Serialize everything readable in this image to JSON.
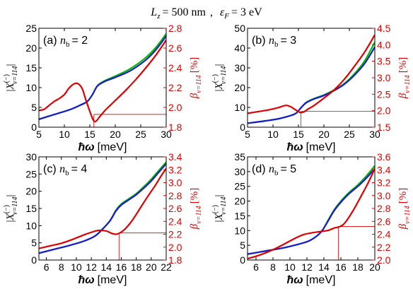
{
  "figure": {
    "title": "L_z = 500 nm ,  ε_F = 3 eV",
    "title_parts": {
      "lz_sym": "L",
      "lz_sub": "z",
      "lz_val": "= 500 nm",
      "sep": ",",
      "ef_sym": "ε",
      "ef_sub": "F",
      "ef_val": "= 3 eV"
    },
    "colors": {
      "axis": "#000000",
      "x_green": "#00bb00",
      "x_blue": "#1a1ad6",
      "beta_red": "#e00000",
      "guide": "#e00000"
    }
  },
  "chart_data": [
    {
      "type": "line",
      "panel_label": "(a)",
      "nb_label": "n_b = 2",
      "nb_sym": "n",
      "nb_sub": "b",
      "nb_val": "= 2",
      "xlabel": "ħω [meV]",
      "ylabel_left": "|X^(−)_{ν=114}|",
      "ylabel_right": "β_{ν=114} [%]",
      "xlim": [
        5,
        30
      ],
      "ylim_left": [
        0,
        25
      ],
      "ylim_right": [
        1.8,
        2.8
      ],
      "xticks": [
        5,
        10,
        15,
        20,
        25,
        30
      ],
      "yticks_left": [
        0,
        5,
        10,
        15,
        20,
        25
      ],
      "yticks_right": [
        1.8,
        2.0,
        2.2,
        2.4,
        2.6,
        2.8
      ],
      "series": [
        {
          "axis": "left",
          "color": "#00bb00",
          "x": [
            5,
            8,
            11,
            13,
            14.5,
            15.5,
            16.5,
            18,
            20,
            23,
            26,
            28,
            30
          ],
          "y": [
            2,
            3.2,
            4.4,
            5.5,
            6.5,
            8.2,
            10.5,
            11.8,
            12.9,
            14.8,
            17.6,
            20.2,
            23.6
          ]
        },
        {
          "axis": "left",
          "color": "#1a1ad6",
          "x": [
            5,
            8,
            11,
            13,
            14.5,
            15.5,
            16.5,
            18,
            20,
            23,
            26,
            28,
            30
          ],
          "y": [
            2,
            3.2,
            4.4,
            5.5,
            6.5,
            8.2,
            10.4,
            11.6,
            12.6,
            14.3,
            17.0,
            19.6,
            23.0
          ]
        },
        {
          "axis": "right",
          "color": "#e00000",
          "x": [
            5,
            6,
            7,
            8,
            9,
            10,
            11,
            12,
            12.7,
            13.5,
            14.2,
            15,
            15.7,
            16.2,
            17,
            18,
            19,
            20,
            22,
            24,
            26,
            28,
            30
          ],
          "y": [
            1.97,
            1.98,
            2.02,
            2.06,
            2.09,
            2.13,
            2.2,
            2.24,
            2.24,
            2.19,
            2.08,
            1.96,
            1.87,
            1.86,
            1.91,
            1.97,
            2.02,
            2.07,
            2.17,
            2.28,
            2.4,
            2.53,
            2.68
          ]
        }
      ],
      "guide": {
        "x": 15.8,
        "y_right": 1.93,
        "x_end": 30
      }
    },
    {
      "type": "line",
      "panel_label": "(b)",
      "nb_label": "n_b = 3",
      "nb_sym": "n",
      "nb_sub": "b",
      "nb_val": "= 3",
      "xlabel": "ħω [meV]",
      "ylabel_left": "|X^(−)_{ν=114}|",
      "ylabel_right": "β_{ν=114} [%]",
      "xlim": [
        5,
        30
      ],
      "ylim_left": [
        0,
        50
      ],
      "ylim_right": [
        1.5,
        4.5
      ],
      "xticks": [
        5,
        10,
        15,
        20,
        25,
        30
      ],
      "yticks_left": [
        0,
        10,
        20,
        30,
        40,
        50
      ],
      "yticks_right": [
        1.5,
        2.0,
        2.5,
        3.0,
        3.5,
        4.0,
        4.5
      ],
      "series": [
        {
          "axis": "left",
          "color": "#00bb00",
          "x": [
            5,
            8,
            11,
            13,
            14.5,
            15.5,
            16.5,
            18,
            20,
            22,
            24,
            26,
            28,
            30
          ],
          "y": [
            2,
            3,
            4.2,
            5.5,
            7,
            9.8,
            12.5,
            14.4,
            16.3,
            18.8,
            22,
            27,
            33.5,
            43
          ]
        },
        {
          "axis": "left",
          "color": "#1a1ad6",
          "x": [
            5,
            8,
            11,
            13,
            14.5,
            15.5,
            16.5,
            18,
            20,
            22,
            24,
            26,
            28,
            30
          ],
          "y": [
            2,
            3,
            4.2,
            5.5,
            7,
            9.8,
            12.3,
            14.2,
            16.0,
            18.5,
            21.7,
            26.3,
            32.2,
            40.5
          ]
        },
        {
          "axis": "right",
          "color": "#e00000",
          "x": [
            5,
            7,
            9,
            11,
            12.5,
            13.5,
            14.5,
            15.3,
            16,
            17,
            18,
            20,
            22,
            24,
            26,
            28,
            30
          ],
          "y": [
            1.92,
            1.97,
            2.02,
            2.09,
            2.16,
            2.12,
            2.02,
            1.95,
            1.96,
            2.06,
            2.15,
            2.38,
            2.63,
            2.95,
            3.35,
            3.78,
            4.3
          ]
        }
      ],
      "guide": {
        "x": 15.5,
        "y_right": 1.98,
        "x_end": 30
      }
    },
    {
      "type": "line",
      "panel_label": "(c)",
      "nb_label": "n_b = 4",
      "nb_sym": "n",
      "nb_sub": "b",
      "nb_val": "= 4",
      "xlabel": "ħω [meV]",
      "ylabel_left": "|X^(−)_{ν=114}|",
      "ylabel_right": "β_{ν=114} [%]",
      "xlim": [
        5,
        22
      ],
      "ylim_left": [
        0,
        30
      ],
      "ylim_right": [
        1.8,
        3.4
      ],
      "xticks": [
        6,
        8,
        10,
        12,
        14,
        16,
        18,
        20,
        22
      ],
      "yticks_left": [
        0,
        5,
        10,
        15,
        20,
        25,
        30
      ],
      "yticks_right": [
        1.8,
        2.0,
        2.2,
        2.4,
        2.6,
        2.8,
        3.0,
        3.2,
        3.4
      ],
      "series": [
        {
          "axis": "left",
          "color": "#00bb00",
          "x": [
            5,
            7,
            9,
            11,
            12.5,
            13.5,
            14.5,
            15.3,
            16,
            17,
            18,
            19,
            20,
            21,
            22
          ],
          "y": [
            2,
            3.1,
            4.2,
            5.5,
            7,
            9,
            11.5,
            14.5,
            16.3,
            17.8,
            19.3,
            21.3,
            23.5,
            26,
            28.5
          ]
        },
        {
          "axis": "left",
          "color": "#1a1ad6",
          "x": [
            5,
            7,
            9,
            11,
            12.5,
            13.5,
            14.5,
            15.3,
            16,
            17,
            18,
            19,
            20,
            21,
            22
          ],
          "y": [
            2,
            3.1,
            4.2,
            5.5,
            7,
            9,
            11.4,
            14.3,
            16.0,
            17.5,
            19.0,
            20.9,
            23.0,
            25.5,
            28.0
          ]
        },
        {
          "axis": "right",
          "color": "#e00000",
          "x": [
            5,
            6.5,
            8,
            9.5,
            11,
            12,
            13,
            14,
            14.6,
            15.2,
            15.8,
            16.5,
            17.5,
            18.5,
            19.5,
            20.5,
            21.3,
            22
          ],
          "y": [
            1.98,
            2.02,
            2.06,
            2.12,
            2.19,
            2.23,
            2.26,
            2.25,
            2.22,
            2.2,
            2.22,
            2.28,
            2.42,
            2.6,
            2.78,
            2.95,
            3.1,
            3.22
          ]
        }
      ],
      "guide": {
        "x": 15.7,
        "y_right": 2.22,
        "x_end": 22
      }
    },
    {
      "type": "line",
      "panel_label": "(d)",
      "nb_label": "n_b = 5",
      "nb_sym": "n",
      "nb_sub": "b",
      "nb_val": "= 5",
      "xlabel": "ħω [meV]",
      "ylabel_left": "|X^(−)_{ν=114}|",
      "ylabel_right": "β_{ν=114} [%]",
      "xlim": [
        5,
        20
      ],
      "ylim_left": [
        0,
        35
      ],
      "ylim_right": [
        2.0,
        3.6
      ],
      "xticks": [
        6,
        8,
        10,
        12,
        14,
        16,
        18,
        20
      ],
      "yticks_left": [
        0,
        5,
        10,
        15,
        20,
        25,
        30,
        35
      ],
      "yticks_right": [
        2.0,
        2.2,
        2.4,
        2.6,
        2.8,
        3.0,
        3.2,
        3.4,
        3.6
      ],
      "series": [
        {
          "axis": "left",
          "color": "#00bb00",
          "x": [
            5,
            7,
            9,
            10.5,
            12,
            13,
            13.8,
            14.5,
            15.2,
            16,
            17,
            18,
            19,
            20
          ],
          "y": [
            2,
            3,
            4,
            5,
            6.2,
            7.8,
            10,
            13.5,
            17,
            20,
            23,
            25.5,
            28.5,
            32
          ]
        },
        {
          "axis": "left",
          "color": "#1a1ad6",
          "x": [
            5,
            7,
            9,
            10.5,
            12,
            13,
            13.8,
            14.5,
            15.2,
            16,
            17,
            18,
            19,
            20
          ],
          "y": [
            2,
            3,
            4,
            5,
            6.2,
            7.8,
            10,
            13.3,
            16.7,
            19.6,
            22.6,
            25.0,
            27.8,
            31.0
          ]
        },
        {
          "axis": "right",
          "color": "#e00000",
          "x": [
            5,
            6.5,
            8,
            9.5,
            10.5,
            11.5,
            12.5,
            13.5,
            14.5,
            15.3,
            15.9,
            16.5,
            17.5,
            18.5,
            19.3,
            20
          ],
          "y": [
            2.02,
            2.08,
            2.16,
            2.26,
            2.33,
            2.39,
            2.42,
            2.44,
            2.46,
            2.5,
            2.52,
            2.58,
            2.78,
            3.02,
            3.22,
            3.42
          ]
        }
      ],
      "guide": {
        "x": 15.7,
        "y_right": 2.52,
        "x_end": 20
      }
    }
  ]
}
